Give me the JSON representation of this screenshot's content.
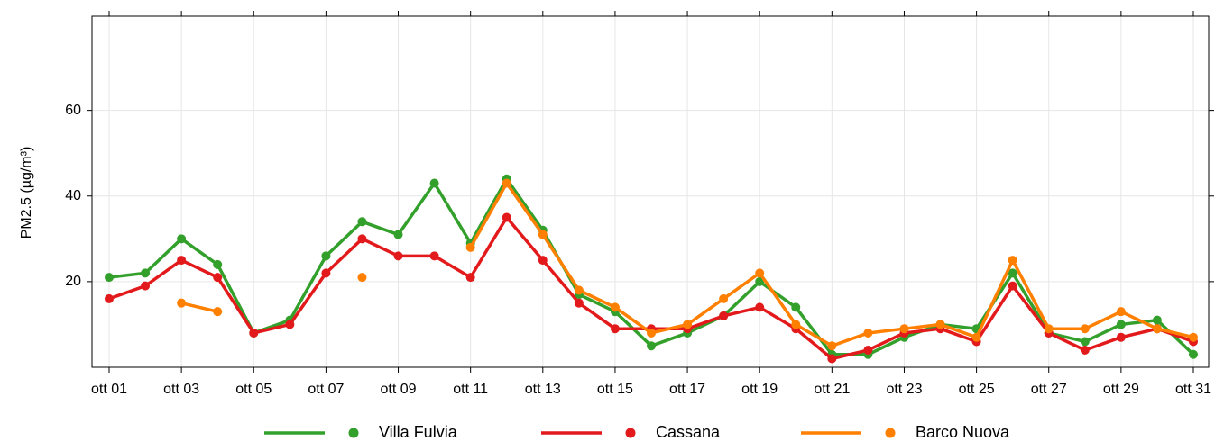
{
  "chart_data": {
    "type": "line",
    "y_label": "PM2.5 (µg/m³)",
    "categories": [
      "ott 01",
      null,
      "ott 03",
      null,
      "ott 05",
      null,
      "ott 07",
      null,
      "ott 09",
      null,
      "ott 11",
      null,
      "ott 13",
      null,
      "ott 15",
      null,
      "ott 17",
      null,
      "ott 19",
      null,
      "ott 21",
      null,
      "ott 23",
      null,
      "ott 25",
      null,
      "ott 27",
      null,
      "ott 29",
      null,
      "ott 31"
    ],
    "series": [
      {
        "name": "Villa Fulvia",
        "color": "#33a02c",
        "values": [
          21,
          22,
          30,
          24,
          8,
          11,
          26,
          34,
          31,
          43,
          29,
          44,
          32,
          17,
          13,
          5,
          8,
          12,
          20,
          14,
          3,
          3,
          7,
          10,
          9,
          22,
          8,
          6,
          10,
          11,
          3
        ]
      },
      {
        "name": "Cassana",
        "color": "#e31a1c",
        "values": [
          16,
          19,
          25,
          21,
          8,
          10,
          22,
          30,
          26,
          26,
          21,
          35,
          25,
          15,
          9,
          9,
          9,
          12,
          14,
          9,
          2,
          4,
          8,
          9,
          6,
          19,
          8,
          4,
          7,
          9,
          6
        ]
      },
      {
        "name": "Barco Nuova",
        "color": "#ff7f00",
        "values": [
          null,
          null,
          15,
          13,
          null,
          null,
          null,
          21,
          null,
          null,
          28,
          43,
          31,
          18,
          14,
          8,
          10,
          16,
          22,
          10,
          5,
          8,
          9,
          10,
          7,
          25,
          9,
          9,
          13,
          9,
          7
        ]
      }
    ],
    "ylim": [
      0,
      82
    ],
    "yticks": [
      20,
      40,
      60
    ],
    "grid": true,
    "legend": "bottom"
  }
}
